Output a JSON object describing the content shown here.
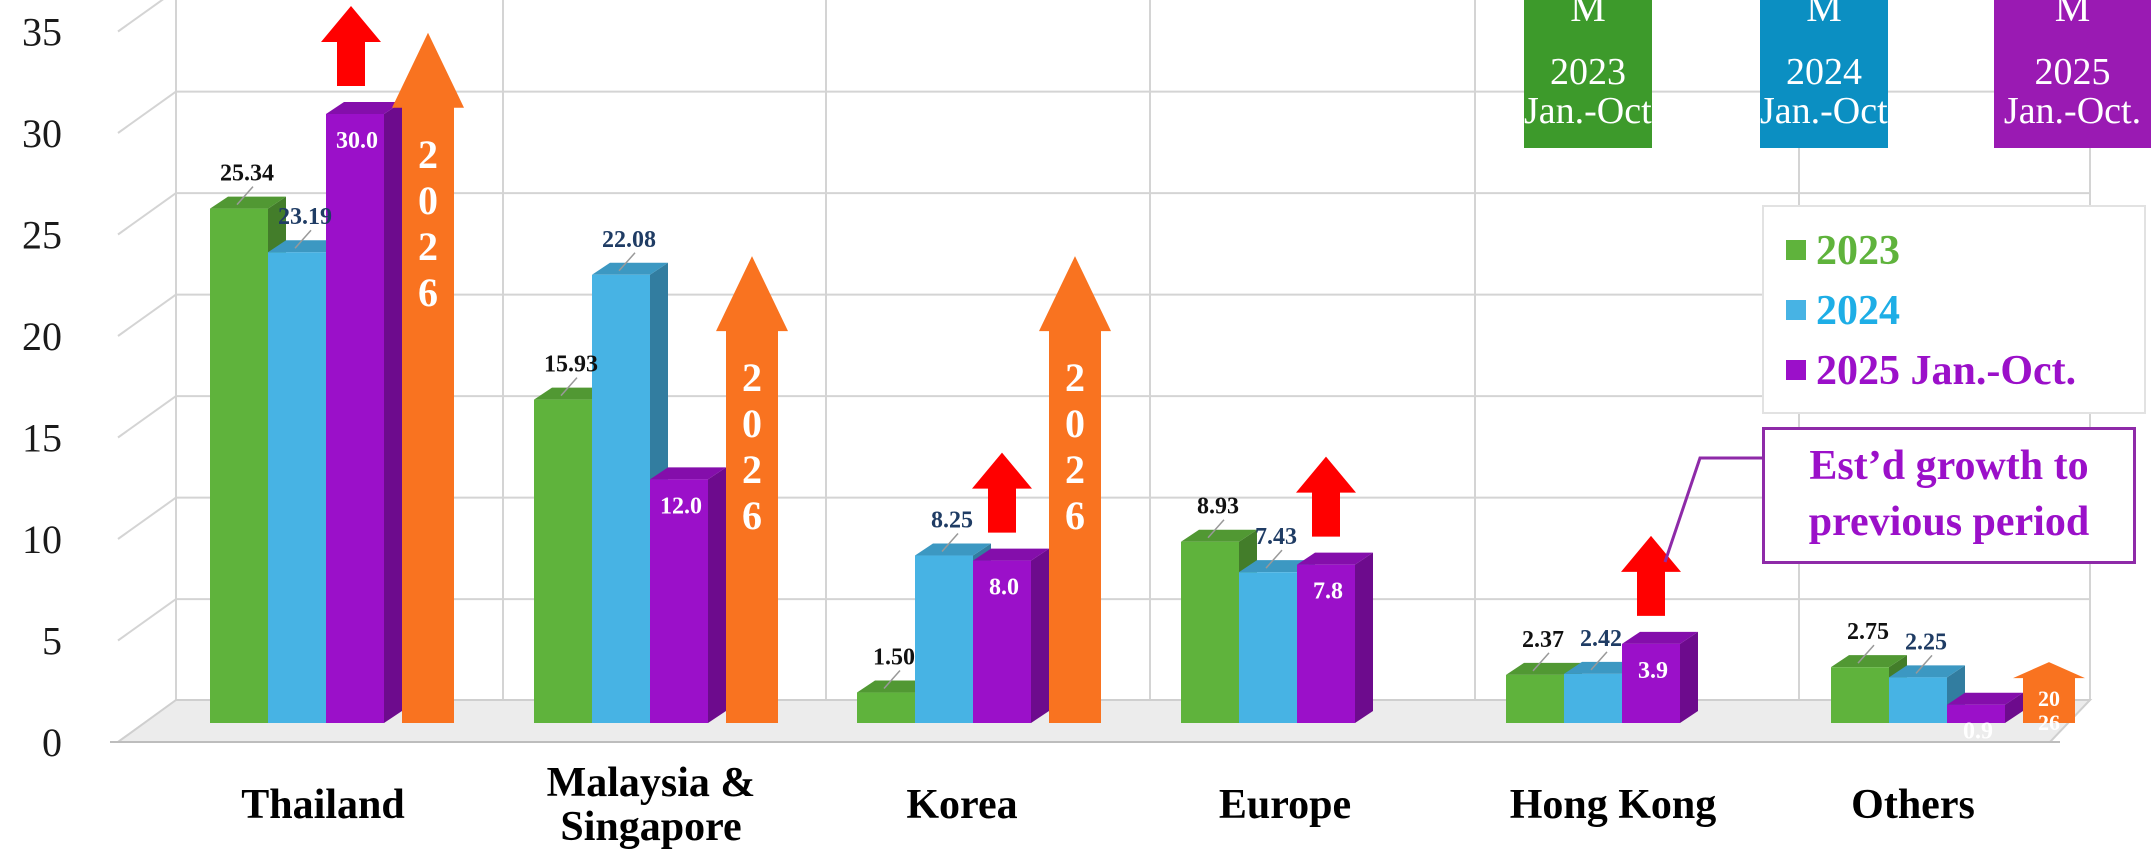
{
  "chart_data": {
    "type": "bar",
    "categories": [
      "Thailand",
      "Malaysia & Singapore",
      "Korea",
      "Europe",
      "Hong Kong",
      "Others"
    ],
    "series": [
      {
        "name": "2023",
        "values": [
          25.34,
          15.93,
          1.5,
          8.93,
          2.37,
          2.75
        ],
        "labels": [
          "25.34",
          "15.93",
          "1.50",
          "8.93",
          "2.37",
          "2.75"
        ],
        "color": "#5fb33c"
      },
      {
        "name": "2024",
        "values": [
          23.19,
          22.08,
          8.25,
          7.43,
          2.42,
          2.25
        ],
        "labels": [
          "23.19",
          "22.08",
          "8.25",
          "7.43",
          "2.42",
          "2.25"
        ],
        "color": "#47b3e4"
      },
      {
        "name": "2025 Jan.-Oct.",
        "values": [
          30.0,
          12.0,
          8.0,
          7.8,
          3.9,
          0.9
        ],
        "labels": [
          "30.0",
          "12.0",
          "8.0",
          "7.8",
          "3.9",
          "0.9"
        ],
        "color": "#9b10c9"
      }
    ],
    "forecast_2026": {
      "label": "2026",
      "values": [
        34,
        23,
        23,
        null,
        null,
        3
      ],
      "color": "#f97320"
    },
    "growth_arrows": [
      true,
      false,
      true,
      true,
      true,
      false
    ],
    "yticks": [
      0,
      5,
      10,
      15,
      20,
      25,
      30,
      35
    ],
    "ylim": [
      0,
      35
    ],
    "grid": true,
    "legend_position": "right",
    "title": "",
    "xlabel": "",
    "ylabel": ""
  },
  "legend": {
    "items": [
      {
        "label": "2023",
        "color": "#5fb33c"
      },
      {
        "label": "2024",
        "color": "#1eaee6"
      },
      {
        "label": "2025 Jan.-Oct.",
        "color": "#9b10c9"
      }
    ]
  },
  "callout": {
    "line1": "Est’d growth to",
    "line2": "previous period"
  },
  "cards": [
    {
      "top": "M",
      "year": "2023",
      "period": "Jan.-Oct.",
      "color": "#3d9a2b"
    },
    {
      "top": "M",
      "year": "2024",
      "period": "Jan.-Oct.",
      "color": "#0b8fc2"
    },
    {
      "top": "M",
      "year": "2025",
      "period": "Jan.-Oct.",
      "color": "#9a1ab3"
    }
  ]
}
